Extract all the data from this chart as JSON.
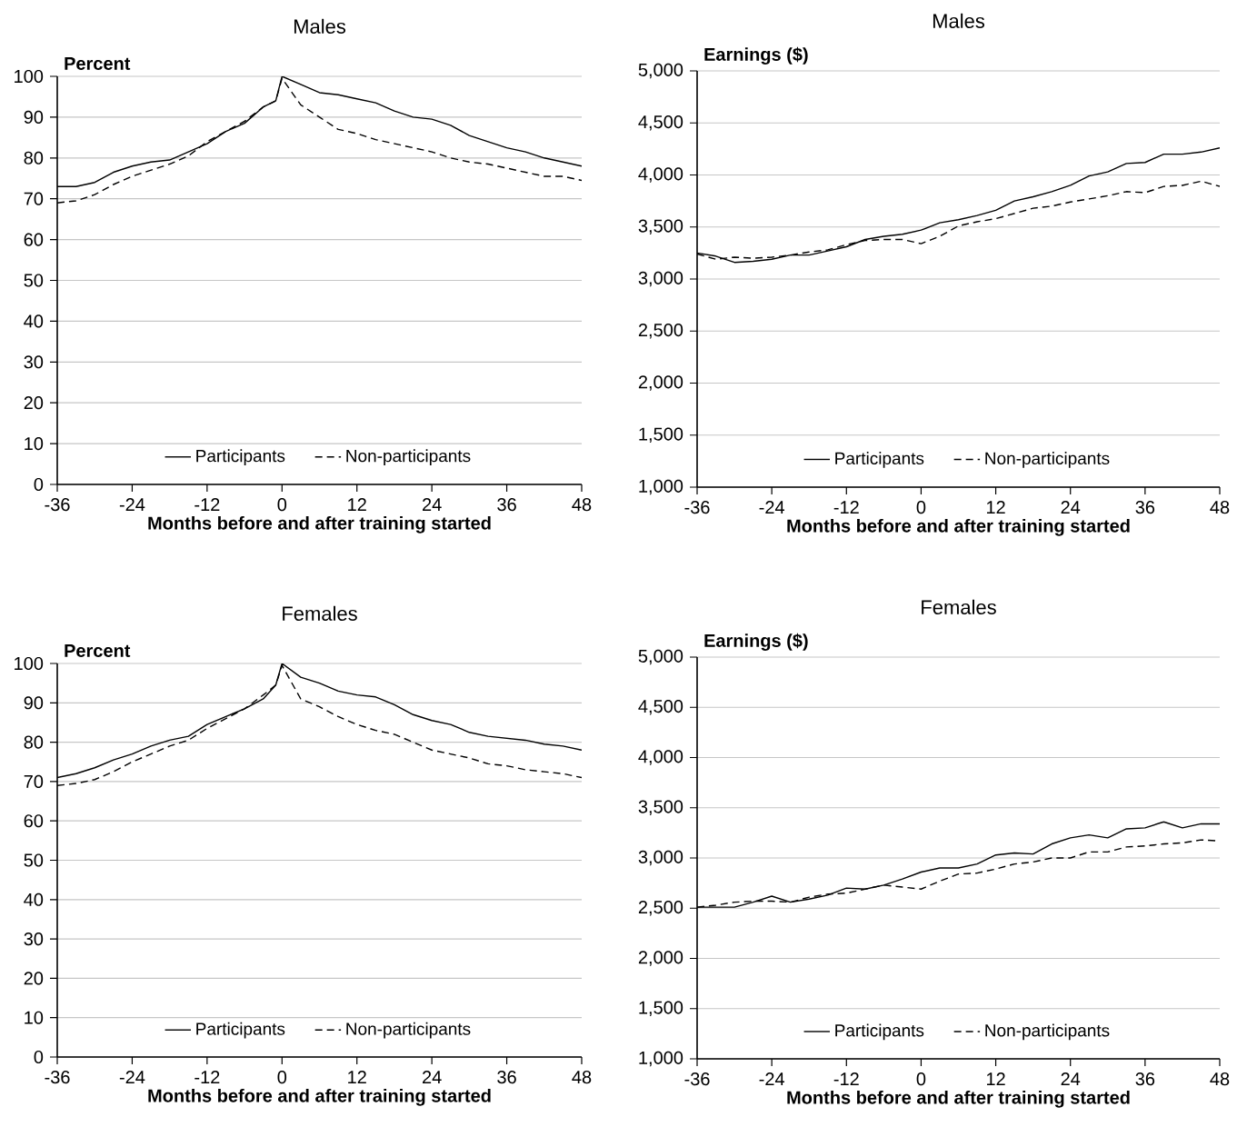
{
  "chart_data": [
    {
      "type": "line",
      "title": "Males",
      "ylabel": "Percent",
      "xlabel": "Months before and after training started",
      "x": [
        -36,
        -33,
        -30,
        -27,
        -24,
        -21,
        -18,
        -15,
        -12,
        -9,
        -6,
        -3,
        -1,
        0,
        3,
        6,
        9,
        12,
        15,
        18,
        21,
        24,
        27,
        30,
        33,
        36,
        39,
        42,
        45,
        48
      ],
      "series": [
        {
          "name": "Participants",
          "color": "#000000",
          "line_style": "solid",
          "values": [
            73,
            73,
            74,
            76.5,
            78,
            79,
            79.5,
            81.5,
            83.5,
            86.5,
            88.5,
            92.5,
            94,
            100,
            98,
            96,
            95.5,
            94.5,
            93.5,
            91.5,
            90,
            89.5,
            88,
            85.5,
            84,
            82.5,
            81.5,
            80,
            79,
            78
          ]
        },
        {
          "name": "Non-participants",
          "color": "#000000",
          "line_style": "dashed",
          "values": [
            69,
            69.5,
            71,
            73.5,
            75.5,
            77,
            78.5,
            80.5,
            84,
            86.5,
            89,
            92.5,
            94,
            99.5,
            93,
            90,
            87,
            86,
            84.5,
            83.5,
            82.5,
            81.5,
            80,
            79,
            78.5,
            77.5,
            76.5,
            75.5,
            75.5,
            74.5
          ]
        }
      ],
      "xlim": [
        -36,
        48
      ],
      "xticks": [
        -36,
        -24,
        -12,
        0,
        12,
        24,
        36,
        48
      ],
      "ylim": [
        0,
        100
      ],
      "yticks": [
        0,
        10,
        20,
        30,
        40,
        50,
        60,
        70,
        80,
        90,
        100
      ],
      "grid": "y",
      "legend": "bottom"
    },
    {
      "type": "line",
      "title": "Males",
      "ylabel": "Earnings ($)",
      "xlabel": "Months before and after training started",
      "x": [
        -36,
        -33,
        -30,
        -27,
        -24,
        -21,
        -18,
        -15,
        -12,
        -9,
        -6,
        -3,
        0,
        3,
        6,
        9,
        12,
        15,
        18,
        21,
        24,
        27,
        30,
        33,
        36,
        39,
        42,
        45,
        48
      ],
      "series": [
        {
          "name": "Participants",
          "color": "#000000",
          "line_style": "solid",
          "values": [
            3250,
            3220,
            3160,
            3170,
            3190,
            3230,
            3230,
            3270,
            3310,
            3380,
            3410,
            3430,
            3470,
            3540,
            3570,
            3610,
            3660,
            3750,
            3790,
            3840,
            3900,
            3990,
            4030,
            4110,
            4120,
            4200,
            4200,
            4220,
            4260
          ]
        },
        {
          "name": "Non-participants",
          "color": "#000000",
          "line_style": "dashed",
          "values": [
            3240,
            3190,
            3210,
            3200,
            3210,
            3230,
            3260,
            3280,
            3330,
            3370,
            3380,
            3380,
            3340,
            3410,
            3510,
            3550,
            3580,
            3630,
            3680,
            3700,
            3740,
            3770,
            3800,
            3840,
            3830,
            3890,
            3900,
            3940,
            3890
          ]
        }
      ],
      "xlim": [
        -36,
        48
      ],
      "xticks": [
        -36,
        -24,
        -12,
        0,
        12,
        24,
        36,
        48
      ],
      "ylim": [
        1000,
        5000
      ],
      "yticks": [
        {
          "value": 1000,
          "label": "1,000"
        },
        {
          "value": 1500,
          "label": "1,500"
        },
        {
          "value": 2000,
          "label": "2,000"
        },
        {
          "value": 2500,
          "label": "2,500"
        },
        {
          "value": 3000,
          "label": "3,000"
        },
        {
          "value": 3500,
          "label": "3,500"
        },
        {
          "value": 4000,
          "label": "4,000"
        },
        {
          "value": 4500,
          "label": "4,500"
        },
        {
          "value": 5000,
          "label": "5,000"
        }
      ],
      "grid": "y",
      "legend": "bottom"
    },
    {
      "type": "line",
      "title": "Females",
      "ylabel": "Percent",
      "xlabel": "Months before and after training started",
      "x": [
        -36,
        -33,
        -30,
        -27,
        -24,
        -21,
        -18,
        -15,
        -12,
        -9,
        -6,
        -3,
        -1,
        0,
        3,
        6,
        9,
        12,
        15,
        18,
        21,
        24,
        27,
        30,
        33,
        36,
        39,
        42,
        45,
        48
      ],
      "series": [
        {
          "name": "Participants",
          "color": "#000000",
          "line_style": "solid",
          "values": [
            71,
            72,
            73.5,
            75.5,
            77,
            79,
            80.5,
            81.5,
            84.5,
            86.5,
            88.5,
            91,
            94.5,
            100,
            96.5,
            95,
            93,
            92,
            91.5,
            89.5,
            87,
            85.5,
            84.5,
            82.5,
            81.5,
            81,
            80.5,
            79.5,
            79,
            78
          ]
        },
        {
          "name": "Non-participants",
          "color": "#000000",
          "line_style": "dashed",
          "values": [
            69,
            69.5,
            70.5,
            72.5,
            75,
            77,
            79,
            80.5,
            83.5,
            86,
            88.5,
            92,
            94.5,
            99.5,
            91,
            89,
            86.5,
            84.5,
            83,
            82,
            80,
            78,
            77,
            76,
            74.5,
            74,
            73,
            72.5,
            72,
            71
          ]
        }
      ],
      "xlim": [
        -36,
        48
      ],
      "xticks": [
        -36,
        -24,
        -12,
        0,
        12,
        24,
        36,
        48
      ],
      "ylim": [
        0,
        100
      ],
      "yticks": [
        0,
        10,
        20,
        30,
        40,
        50,
        60,
        70,
        80,
        90,
        100
      ],
      "grid": "y",
      "legend": "bottom"
    },
    {
      "type": "line",
      "title": "Females",
      "ylabel": "Earnings ($)",
      "xlabel": "Months before and after training started",
      "x": [
        -36,
        -33,
        -30,
        -27,
        -24,
        -21,
        -18,
        -15,
        -12,
        -9,
        -6,
        -3,
        0,
        3,
        6,
        9,
        12,
        15,
        18,
        21,
        24,
        27,
        30,
        33,
        36,
        39,
        42,
        45,
        48
      ],
      "series": [
        {
          "name": "Participants",
          "color": "#000000",
          "line_style": "solid",
          "values": [
            2510,
            2510,
            2510,
            2560,
            2620,
            2560,
            2590,
            2630,
            2700,
            2690,
            2730,
            2790,
            2860,
            2900,
            2900,
            2940,
            3030,
            3050,
            3040,
            3140,
            3200,
            3230,
            3200,
            3290,
            3300,
            3360,
            3300,
            3340,
            3340
          ]
        },
        {
          "name": "Non-participants",
          "color": "#000000",
          "line_style": "dashed",
          "values": [
            2510,
            2530,
            2560,
            2570,
            2570,
            2560,
            2610,
            2640,
            2650,
            2690,
            2730,
            2710,
            2690,
            2770,
            2840,
            2850,
            2890,
            2940,
            2960,
            3000,
            3000,
            3060,
            3060,
            3110,
            3120,
            3140,
            3150,
            3180,
            3170
          ]
        }
      ],
      "xlim": [
        -36,
        48
      ],
      "xticks": [
        -36,
        -24,
        -12,
        0,
        12,
        24,
        36,
        48
      ],
      "ylim": [
        1000,
        5000
      ],
      "yticks": [
        {
          "value": 1000,
          "label": "1,000"
        },
        {
          "value": 1500,
          "label": "1,500"
        },
        {
          "value": 2000,
          "label": "2,000"
        },
        {
          "value": 2500,
          "label": "2,500"
        },
        {
          "value": 3000,
          "label": "3,000"
        },
        {
          "value": 3500,
          "label": "3,500"
        },
        {
          "value": 4000,
          "label": "4,000"
        },
        {
          "value": 4500,
          "label": "4,500"
        },
        {
          "value": 5000,
          "label": "5,000"
        }
      ],
      "grid": "y",
      "legend": "bottom"
    }
  ]
}
